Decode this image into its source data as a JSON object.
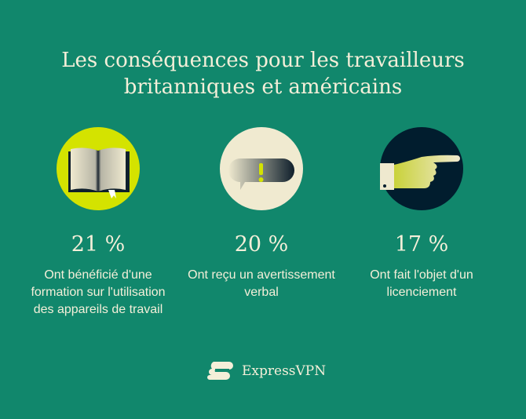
{
  "title": "Les conséquences pour les travailleurs britanniques et américains",
  "stats": [
    {
      "icon": "open-book-icon",
      "value": "21 %",
      "description": "Ont bénéficié d'une formation sur l'utilisation des appareils de travail",
      "circle_color": "#d4e300"
    },
    {
      "icon": "speech-bubble-exclamation-icon",
      "value": "20 %",
      "description": "Ont reçu un avertissement verbal",
      "circle_color": "#f0ead0"
    },
    {
      "icon": "pointing-hand-icon",
      "value": "17 %",
      "description": "Ont fait l'objet d'un licenciement",
      "circle_color": "#011d2e"
    }
  ],
  "brand": {
    "name": "ExpressVPN",
    "icon": "expressvpn-logo-icon"
  },
  "colors": {
    "background": "#11876c",
    "text": "#f4efd9"
  }
}
